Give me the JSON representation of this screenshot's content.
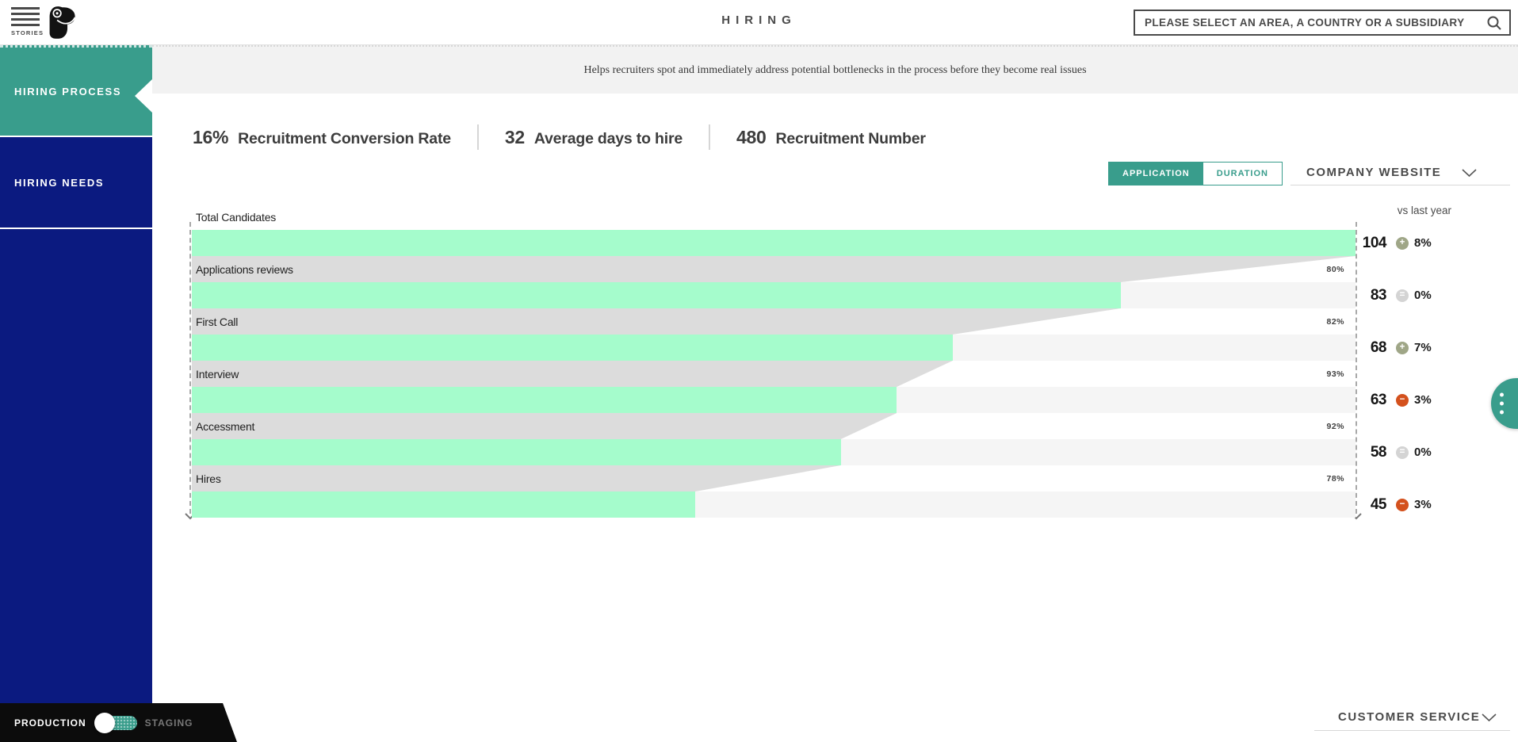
{
  "header": {
    "menu": {
      "label": "STORIES"
    },
    "title": "HIRING",
    "search": {
      "placeholder": "PLEASE SELECT AN AREA, A COUNTRY OR A SUBSIDIARY"
    }
  },
  "sidebar": {
    "items": [
      {
        "label": "HIRING PROCESS",
        "active": true
      },
      {
        "label": "HIRING NEEDS",
        "active": false
      }
    ]
  },
  "banner": {
    "description": "Helps recruiters spot and immediately address potential bottlenecks in the process before they become real issues"
  },
  "stats": [
    {
      "value": "16%",
      "label": "Recruitment Conversion Rate"
    },
    {
      "value": "32",
      "label": "Average days to hire"
    },
    {
      "value": "480",
      "label": "Recruitment Number"
    }
  ],
  "controls": {
    "view_toggle": [
      {
        "label": "APPLICATION",
        "active": true
      },
      {
        "label": "DURATION",
        "active": false
      }
    ],
    "benchmark_dropdown": {
      "value": "COMPANY WEBSITE"
    },
    "comparison_label": "vs last year"
  },
  "chart_data": {
    "type": "funnel",
    "max_value": 104,
    "stages": [
      {
        "label": "Total Candidates",
        "value": 104,
        "conversion_from_previous": null,
        "vs_last_year": {
          "trend": "up",
          "change": "8%"
        }
      },
      {
        "label": "Applications reviews",
        "value": 83,
        "conversion_from_previous": "80%",
        "vs_last_year": {
          "trend": "flat",
          "change": "0%"
        }
      },
      {
        "label": "First Call",
        "value": 68,
        "conversion_from_previous": "82%",
        "vs_last_year": {
          "trend": "up",
          "change": "7%"
        }
      },
      {
        "label": "Interview",
        "value": 63,
        "conversion_from_previous": "93%",
        "vs_last_year": {
          "trend": "down",
          "change": "3%"
        }
      },
      {
        "label": "Accessment",
        "value": 58,
        "conversion_from_previous": "92%",
        "vs_last_year": {
          "trend": "flat",
          "change": "0%"
        }
      },
      {
        "label": "Hires",
        "value": 45,
        "conversion_from_previous": "78%",
        "vs_last_year": {
          "trend": "down",
          "change": "3%"
        }
      }
    ],
    "trend_glyphs": {
      "up": "+",
      "flat": "=",
      "down": "−"
    },
    "trend_colors": {
      "up": "#9fa687",
      "flat": "#d4d4d4",
      "down": "#d4511d"
    }
  },
  "footer": {
    "environment_toggle": {
      "options": [
        "PRODUCTION",
        "STAGING"
      ],
      "selected": "PRODUCTION"
    },
    "service_dropdown": {
      "value": "CUSTOMER SERVICE"
    }
  },
  "colors": {
    "accent_teal": "#399d8c",
    "sidebar_navy": "#0b1a80",
    "funnel_bar": "#a5fccc",
    "funnel_connector": "#dcdcdc",
    "funnel_track": "#f5f5f5",
    "negative": "#d4511d"
  }
}
